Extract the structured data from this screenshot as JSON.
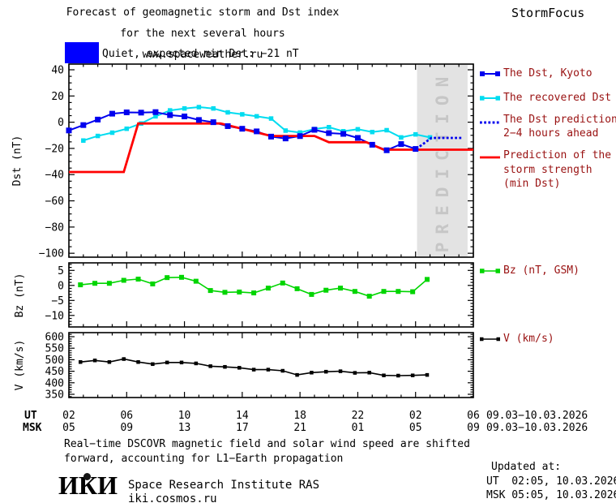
{
  "header": {
    "title_line1": "Forecast of geomagnetic storm and Dst index",
    "title_line2": "for the next several hours",
    "title_line3": "www.spaceweather.ru",
    "brand": "StormFocus"
  },
  "status": {
    "label": "Quiet, expected min Dst: −21 nT",
    "level_color": "#0000ff"
  },
  "legend": {
    "text_color": "#991111",
    "dst": {
      "label": "The Dst, Kyoto"
    },
    "recovered": {
      "label": "The recovered Dst"
    },
    "prediction": {
      "label_line1": "The Dst prediction",
      "label_line2": "2−4 hours ahead"
    },
    "storm": {
      "label_line1": "Prediction of the",
      "label_line2": "storm strength",
      "label_line3": "(min Dst)"
    },
    "bz": {
      "label": "Bz (nT, GSM)"
    },
    "v": {
      "label": "V (km/s)"
    }
  },
  "chart_data": [
    {
      "type": "line",
      "panel": "dst",
      "ylabel": "Dst (nT)",
      "yticks": [
        40,
        20,
        0,
        -20,
        -40,
        -60,
        -80,
        -100
      ],
      "ylim": [
        -103,
        42
      ],
      "x_hours_ut": [
        2,
        30
      ],
      "band": {
        "label": "PREDICTION",
        "x_hours": [
          26.1,
          29.6
        ],
        "color": "#e3e3e3",
        "text_color": "#c6c6c6"
      },
      "series": [
        {
          "id": "dst",
          "name": "The Dst, Kyoto",
          "color": "#0000ee",
          "marker": "square",
          "x_start": 2,
          "x_step": 1,
          "values": [
            -6.3,
            -2.2,
            2,
            6.5,
            7.5,
            7.3,
            7.7,
            5.4,
            4.4,
            1.7,
            0,
            -3,
            -5,
            -7,
            -11,
            -12.4,
            -10.6,
            -5.8,
            -8.3,
            -8.9,
            -12,
            -17.2,
            -21.4,
            -16.7,
            -20.4
          ]
        },
        {
          "id": "recovered",
          "name": "The recovered Dst",
          "color": "#00dcf0",
          "marker": "square",
          "x_start": 3,
          "x_step": 1,
          "values": [
            -14,
            -10.5,
            -8,
            -5,
            -1,
            4.5,
            9,
            10.5,
            11.5,
            10.5,
            7.5,
            6,
            4.5,
            2.8,
            -6.4,
            -7.9,
            -5.2,
            -3.8,
            -6.9,
            -5.4,
            -7.5,
            -6.1,
            -11.6,
            -9.3,
            -11.6
          ]
        },
        {
          "id": "prediction",
          "name": "The Dst prediction 2−4 hours ahead",
          "color": "#0000ee",
          "style": "dotted",
          "points": [
            [
              26.05,
              -20.4
            ],
            [
              27.1,
              -12
            ],
            [
              29.2,
              -12
            ]
          ]
        },
        {
          "id": "storm",
          "name": "Prediction of the storm strength (min Dst)",
          "color": "#ff0000",
          "style": "solid",
          "points": [
            [
              2,
              -38
            ],
            [
              5.8,
              -38
            ],
            [
              6.8,
              -1
            ],
            [
              12.5,
              -1
            ],
            [
              16,
              -10.5
            ],
            [
              19,
              -10.5
            ],
            [
              20,
              -15.3
            ],
            [
              22.6,
              -15.3
            ],
            [
              23.8,
              -21
            ],
            [
              30,
              -21
            ]
          ]
        }
      ]
    },
    {
      "type": "line",
      "panel": "bz",
      "ylabel": "Bz (nT)",
      "yticks": [
        5,
        0,
        -5,
        -10
      ],
      "ylim": [
        -13.5,
        7.5
      ],
      "series": [
        {
          "id": "bz",
          "name": "Bz (nT, GSM)",
          "color": "#00d500",
          "marker": "square",
          "x_start": 2.8,
          "x_step": 1,
          "values": [
            0.2,
            0.7,
            0.7,
            1.7,
            2.1,
            0.5,
            2.6,
            2.7,
            1.4,
            -1.7,
            -2.3,
            -2.2,
            -2.5,
            -0.9,
            0.8,
            -1.1,
            -3,
            -1.6,
            -0.9,
            -2,
            -3.6,
            -2,
            -2,
            -2.1,
            2
          ]
        }
      ]
    },
    {
      "type": "line",
      "panel": "v",
      "ylabel": "V (km/s)",
      "yticks": [
        600,
        550,
        500,
        450,
        400,
        350
      ],
      "ylim": [
        336,
        617
      ],
      "series": [
        {
          "id": "v",
          "name": "V (km/s)",
          "color": "#000000",
          "marker": "square",
          "x_start": 2.8,
          "x_step": 1,
          "values": [
            490,
            497,
            490,
            503,
            490,
            481,
            488,
            488,
            484,
            472,
            469,
            465,
            457,
            457,
            452,
            434,
            444,
            448,
            450,
            443,
            444,
            432,
            431,
            432,
            434
          ]
        }
      ]
    }
  ],
  "xaxis": {
    "ut_prefix": "UT",
    "msk_prefix": "MSK",
    "ut_hours": [
      "02",
      "06",
      "10",
      "14",
      "18",
      "22",
      "02",
      "06"
    ],
    "msk_hours": [
      "05",
      "09",
      "13",
      "17",
      "21",
      "01",
      "05",
      "09"
    ],
    "ut_date": "09.03−10.03.2026",
    "msk_date": "09.03−10.03.2026"
  },
  "footer": {
    "note_line1": "Real−time DSCOVR magnetic field and solar wind speed are shifted",
    "note_line2": "forward, accounting for L1−Earth propagation",
    "logo": "ИКИ",
    "institute": "Space Research Institute RAS",
    "site": "iki.cosmos.ru",
    "updated_label": "Updated at:",
    "updated_ut": "UT  02:05, 10.03.2026",
    "updated_msk": "MSK 05:05, 10.03.2026"
  }
}
